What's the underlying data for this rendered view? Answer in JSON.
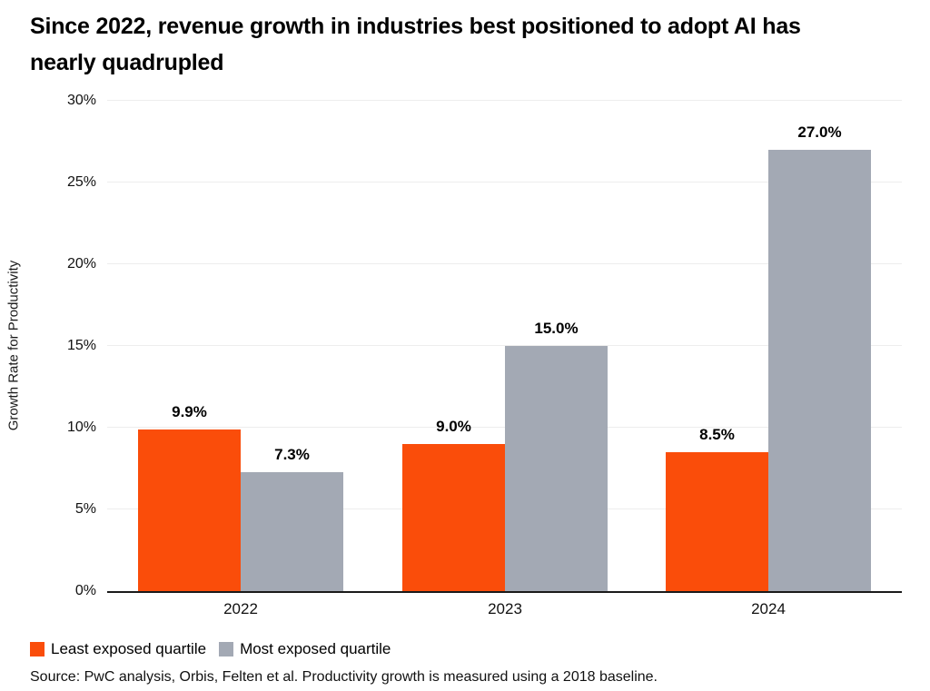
{
  "header": {
    "title_line1": "Since 2022, revenue growth in industries best positioned to adopt AI has",
    "title_line2": "nearly quadrupled"
  },
  "chart_data": {
    "type": "bar",
    "categories": [
      "2022",
      "2023",
      "2024"
    ],
    "series": [
      {
        "name": "Least exposed quartile",
        "color": "#FA4D0A",
        "values": [
          9.9,
          9.0,
          8.5
        ]
      },
      {
        "name": "Most exposed quartile",
        "color": "#A3A9B4",
        "values": [
          7.3,
          15.0,
          27.0
        ]
      }
    ],
    "title": "Since 2022, revenue growth in industries best positioned to adopt AI has nearly quadrupled",
    "xlabel": "",
    "ylabel": "Growth Rate for Productivity",
    "ylim": [
      0,
      30
    ],
    "y_ticks": [
      0,
      5,
      10,
      15,
      20,
      25,
      30
    ],
    "y_tick_suffix": "%",
    "grid": true,
    "legend_position": "bottom",
    "data_label_decimals": 1
  },
  "footer": {
    "source": "Source: PwC analysis, Orbis, Felten et al. Productivity growth is measured using a 2018 baseline."
  },
  "colors": {
    "accent_orange": "#FA4D0A",
    "accent_gray": "#A3A9B4",
    "gridline": "#ededed",
    "axis_line": "#1a1a1a"
  }
}
